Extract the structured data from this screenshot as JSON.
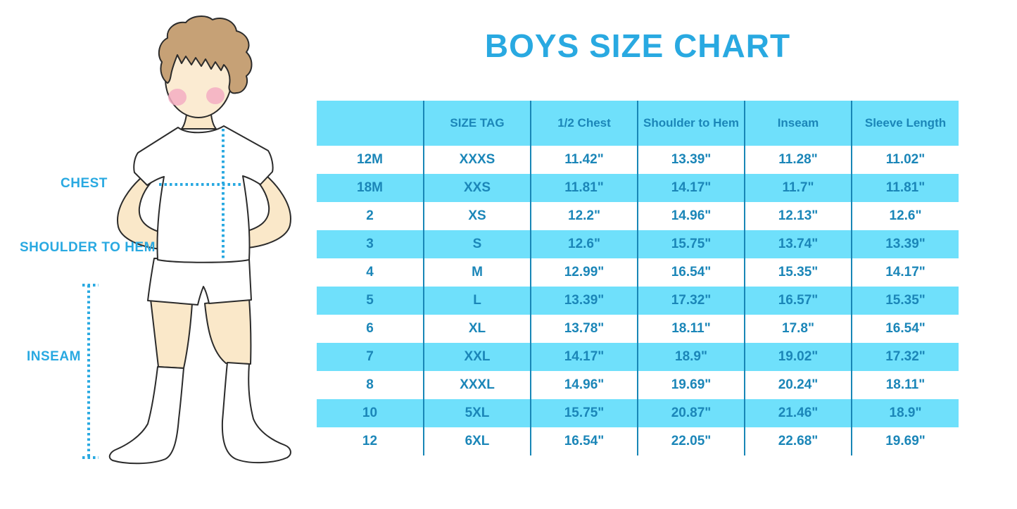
{
  "title": "BOYS SIZE CHART",
  "colors": {
    "accent_blue": "#29A9E1",
    "table_text_blue": "#1B86B8",
    "table_stripe_blue": "#6FE0FB",
    "divider_blue": "#1886B6",
    "skin": "#FAE8C9",
    "hair_brown": "#C6A176",
    "blush_pink": "#F3AEC3",
    "outline": "#2b2b2b"
  },
  "figure": {
    "labels": {
      "chest": "CHEST",
      "shoulder_to_hem": "SHOULDER TO HEM",
      "inseam": "INSEAM"
    }
  },
  "chart_data": {
    "type": "table",
    "title": "BOYS SIZE CHART",
    "columns": [
      "",
      "SIZE TAG",
      "1/2 Chest",
      "Shoulder to Hem",
      "Inseam",
      "Sleeve Length"
    ],
    "rows": [
      [
        "12M",
        "XXXS",
        "11.42\"",
        "13.39\"",
        "11.28\"",
        "11.02\""
      ],
      [
        "18M",
        "XXS",
        "11.81\"",
        "14.17\"",
        "11.7\"",
        "11.81\""
      ],
      [
        "2",
        "XS",
        "12.2\"",
        "14.96\"",
        "12.13\"",
        "12.6\""
      ],
      [
        "3",
        "S",
        "12.6\"",
        "15.75\"",
        "13.74\"",
        "13.39\""
      ],
      [
        "4",
        "M",
        "12.99\"",
        "16.54\"",
        "15.35\"",
        "14.17\""
      ],
      [
        "5",
        "L",
        "13.39\"",
        "17.32\"",
        "16.57\"",
        "15.35\""
      ],
      [
        "6",
        "XL",
        "13.78\"",
        "18.11\"",
        "17.8\"",
        "16.54\""
      ],
      [
        "7",
        "XXL",
        "14.17\"",
        "18.9\"",
        "19.02\"",
        "17.32\""
      ],
      [
        "8",
        "XXXL",
        "14.96\"",
        "19.69\"",
        "20.24\"",
        "18.11\""
      ],
      [
        "10",
        "5XL",
        "15.75\"",
        "20.87\"",
        "21.46\"",
        "18.9\""
      ],
      [
        "12",
        "6XL",
        "16.54\"",
        "22.05\"",
        "22.68\"",
        "19.69\""
      ]
    ],
    "row_striping": "alternating white / light blue, header light blue",
    "annotations": [
      "CHEST",
      "SHOULDER TO HEM",
      "INSEAM"
    ]
  }
}
